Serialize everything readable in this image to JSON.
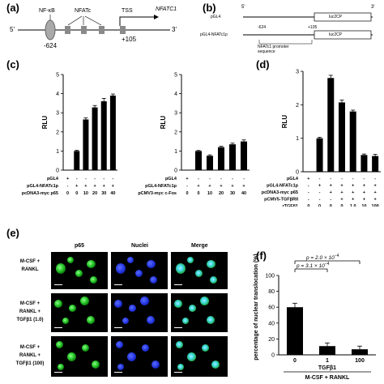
{
  "panels": {
    "a": {
      "label": "(a)",
      "nfkb": "NF-κB",
      "nfatc": "NFATc",
      "tss": "TSS",
      "gene": "NFATC1",
      "five": "5'",
      "three": "3'",
      "left_pos": "-624",
      "right_pos": "+105"
    },
    "b": {
      "label": "(b)",
      "five": "5'",
      "three": "3'",
      "pgl4": "pGL4",
      "construct": "pGL4-NFATc1p",
      "left_pos": "-624",
      "right_pos": "+105",
      "luc_top": "luc2CP",
      "luc_bottom": "luc2CP",
      "promoter_line1": "NFATc1 promoter",
      "promoter_line2": "sequence"
    },
    "c": {
      "label": "(c)"
    },
    "d": {
      "label": "(d)"
    },
    "e": {
      "label": "(e)",
      "col_headers": [
        "p65",
        "Nuclei",
        "Merge"
      ],
      "row_labels": [
        [
          "M-CSF +",
          "RANKL"
        ],
        [
          "M-CSF +",
          "RANKL +",
          "TGFβ1 (1.0)"
        ],
        [
          "M-CSF +",
          "RANKL +",
          "TGFβ1 (100)"
        ]
      ]
    },
    "f": {
      "label": "(f)",
      "p_top": "p = 2.0 × 10",
      "p_top_exp": "−4",
      "p_bottom": "p = 3.1 × 10",
      "p_bottom_exp": "−4",
      "tgf": "TGFβ1",
      "treatment": "M-CSF + RANKL"
    }
  },
  "chart_data": [
    {
      "id": "c-left",
      "type": "bar",
      "ylabel": "RLU",
      "ylim": [
        0,
        5
      ],
      "yticks": [
        0,
        1,
        2,
        3,
        4,
        5
      ],
      "values": [
        0,
        1.0,
        2.65,
        3.28,
        3.6,
        3.9
      ],
      "errors": [
        0,
        0.04,
        0.08,
        0.1,
        0.15,
        0.08
      ],
      "table": [
        {
          "label": "pGL4",
          "cells": [
            "+",
            "-",
            "-",
            "-",
            "-",
            "-"
          ]
        },
        {
          "label": "pGL4-NFATc1p",
          "cells": [
            "-",
            "+",
            "+",
            "+",
            "+",
            "+"
          ]
        },
        {
          "label": "pcDNA3-myc p65",
          "cells": [
            "0",
            "0",
            "10",
            "20",
            "30",
            "40"
          ]
        }
      ]
    },
    {
      "id": "c-right",
      "type": "bar",
      "ylabel": "RLU",
      "ylim": [
        0,
        5
      ],
      "yticks": [
        0,
        1,
        2,
        3,
        4,
        5
      ],
      "values": [
        0,
        1.0,
        0.75,
        1.2,
        1.35,
        1.5
      ],
      "errors": [
        0,
        0.03,
        0.05,
        0.05,
        0.06,
        0.08
      ],
      "table": [
        {
          "label": "pGL4",
          "cells": [
            "+",
            "-",
            "-",
            "-",
            "-",
            "-"
          ]
        },
        {
          "label": "pGL4-NFATc1p",
          "cells": [
            "-",
            "+",
            "+",
            "+",
            "+",
            "+"
          ]
        },
        {
          "label": "pCMV3-myc c-Fos",
          "cells": [
            "0",
            "0",
            "10",
            "20",
            "30",
            "40"
          ]
        }
      ]
    },
    {
      "id": "d",
      "type": "bar",
      "ylabel": "RLU",
      "ylim": [
        0,
        3
      ],
      "yticks": [
        0,
        1,
        2,
        3
      ],
      "values": [
        0,
        1.0,
        2.8,
        2.07,
        1.8,
        0.5,
        0.47
      ],
      "errors": [
        0,
        0.03,
        0.08,
        0.07,
        0.04,
        0.03,
        0.05
      ],
      "table": [
        {
          "label": "pGL4",
          "cells": [
            "+",
            "-",
            "-",
            "-",
            "-",
            "-",
            "-"
          ]
        },
        {
          "label": "pGL4-NFATc1p",
          "cells": [
            "-",
            "+",
            "+",
            "+",
            "+",
            "+",
            "+"
          ]
        },
        {
          "label": "pcDNA3-myc p65",
          "cells": [
            "-",
            "-",
            "+",
            "+",
            "+",
            "+",
            "+"
          ]
        },
        {
          "label": "pCMV5-TGFβRII",
          "cells": [
            "-",
            "-",
            "-",
            "+",
            "+",
            "+",
            "+"
          ]
        },
        {
          "label": "rTGFβ1",
          "cells": [
            "0",
            "0",
            "0",
            "0",
            "1.0",
            "10",
            "100"
          ]
        }
      ]
    },
    {
      "id": "f",
      "type": "bar",
      "ylabel": "percentage of nuclear translocation (%)",
      "ylim": [
        0,
        100
      ],
      "yticks": [
        0,
        20,
        40,
        60,
        80,
        100
      ],
      "categories": [
        "0",
        "1",
        "100"
      ],
      "values": [
        60,
        11,
        7
      ],
      "errors": [
        5,
        4,
        4
      ]
    }
  ]
}
